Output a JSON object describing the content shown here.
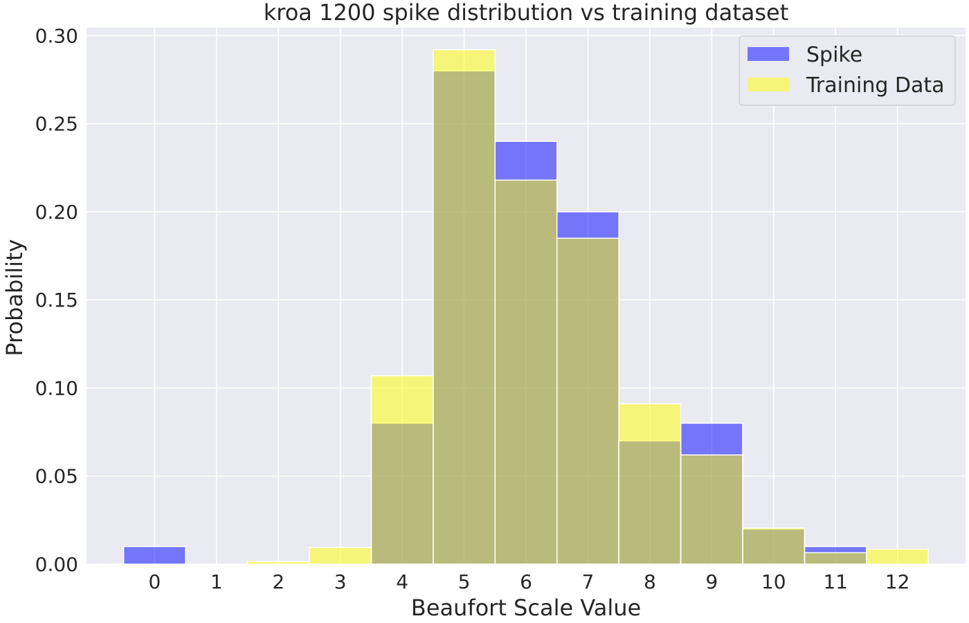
{
  "chart_data": {
    "type": "bar",
    "title": "kroa 1200 spike distribution vs training dataset",
    "xlabel": "Beaufort Scale Value",
    "ylabel": "Probability",
    "categories": [
      "0",
      "1",
      "2",
      "3",
      "4",
      "5",
      "6",
      "7",
      "8",
      "9",
      "10",
      "11",
      "12"
    ],
    "x": [
      0,
      1,
      2,
      3,
      4,
      5,
      6,
      7,
      8,
      9,
      10,
      11,
      12
    ],
    "series": [
      {
        "name": "Spike",
        "color": "#0000ff",
        "opacity": 0.5,
        "values": [
          0.01,
          0,
          0,
          0,
          0.08,
          0.28,
          0.24,
          0.2,
          0.07,
          0.08,
          0.02,
          0.01,
          0
        ]
      },
      {
        "name": "Training Data",
        "color": "#ffff00",
        "opacity": 0.5,
        "values": [
          0,
          0,
          0.0015,
          0.0095,
          0.107,
          0.292,
          0.218,
          0.185,
          0.091,
          0.062,
          0.0205,
          0.0065,
          0.0085
        ]
      }
    ],
    "xlim": [
      -1.1,
      13.1
    ],
    "ylim": [
      0,
      0.3045
    ],
    "yticks": [
      "0.00",
      "0.05",
      "0.10",
      "0.15",
      "0.20",
      "0.25",
      "0.30"
    ],
    "ytick_values": [
      0,
      0.05,
      0.1,
      0.15,
      0.2,
      0.25,
      0.3
    ],
    "grid": true,
    "legend_position": "top-right",
    "plot_background": "#eaeaf2",
    "grid_color": "#ffffff"
  }
}
